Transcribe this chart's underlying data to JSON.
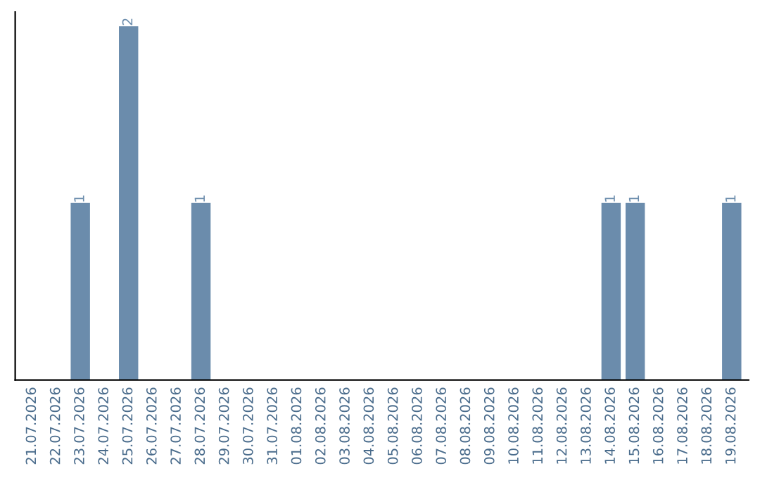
{
  "chart_data": {
    "type": "bar",
    "categories": [
      "21.07.2026",
      "22.07.2026",
      "23.07.2026",
      "24.07.2026",
      "25.07.2026",
      "26.07.2026",
      "27.07.2026",
      "28.07.2026",
      "29.07.2026",
      "30.07.2026",
      "31.07.2026",
      "01.08.2026",
      "02.08.2026",
      "03.08.2026",
      "04.08.2026",
      "05.08.2026",
      "06.08.2026",
      "07.08.2026",
      "08.08.2026",
      "09.08.2026",
      "10.08.2026",
      "11.08.2026",
      "12.08.2026",
      "13.08.2026",
      "14.08.2026",
      "15.08.2026",
      "16.08.2026",
      "17.08.2026",
      "18.08.2026",
      "19.08.2026"
    ],
    "values": [
      0,
      0,
      1,
      0,
      2,
      0,
      0,
      1,
      0,
      0,
      0,
      0,
      0,
      0,
      0,
      0,
      0,
      0,
      0,
      0,
      0,
      0,
      0,
      0,
      1,
      1,
      0,
      0,
      0,
      1
    ],
    "value_labels": [
      null,
      null,
      "1",
      null,
      "2",
      null,
      null,
      "1",
      null,
      null,
      null,
      null,
      null,
      null,
      null,
      null,
      null,
      null,
      null,
      null,
      null,
      null,
      null,
      null,
      "1",
      "1",
      null,
      null,
      null,
      "1"
    ],
    "color": "#6b8cac",
    "tick_labels": "x",
    "grid": false,
    "legend": false
  }
}
